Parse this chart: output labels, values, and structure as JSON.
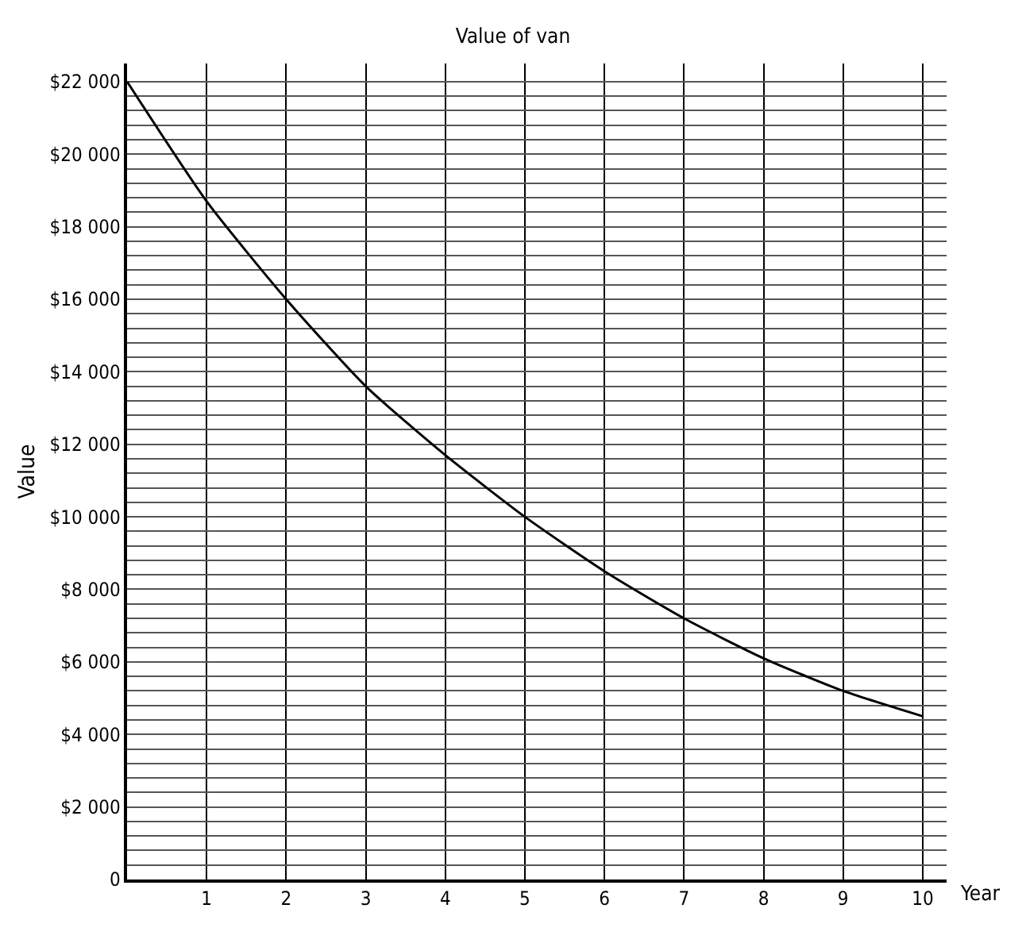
{
  "chart_data": {
    "type": "line",
    "title": "Value of van",
    "xlabel": "Year",
    "ylabel": "Value",
    "x": [
      0,
      1,
      2,
      3,
      4,
      5,
      6,
      7,
      8,
      9,
      10
    ],
    "series": [
      {
        "color": "#000000",
        "values": [
          22000,
          18700,
          16000,
          13600,
          11700,
          10000,
          8500,
          7200,
          6100,
          5200,
          4500
        ]
      }
    ],
    "xlim": [
      0,
      10.3
    ],
    "ylim": [
      0,
      22500
    ],
    "xticks": [
      1,
      2,
      3,
      4,
      5,
      6,
      7,
      8,
      9,
      10
    ],
    "yticks": [
      0,
      {
        "value": 400,
        "label": null
      },
      {
        "value": 800,
        "label": null
      },
      {
        "value": 1200,
        "label": null
      },
      {
        "value": 1600,
        "label": null
      },
      {
        "value": 2000,
        "label": "$2 000"
      },
      {
        "value": 2400,
        "label": null
      },
      {
        "value": 2800,
        "label": null
      },
      {
        "value": 3200,
        "label": null
      },
      {
        "value": 3600,
        "label": null
      },
      {
        "value": 4000,
        "label": "$4 000"
      },
      {
        "value": 4400,
        "label": null
      },
      {
        "value": 4800,
        "label": null
      },
      {
        "value": 5200,
        "label": null
      },
      {
        "value": 5600,
        "label": null
      },
      {
        "value": 6000,
        "label": "$6 000"
      },
      {
        "value": 6400,
        "label": null
      },
      {
        "value": 6800,
        "label": null
      },
      {
        "value": 7200,
        "label": null
      },
      {
        "value": 7600,
        "label": null
      },
      {
        "value": 8000,
        "label": "$8 000"
      },
      {
        "value": 8400,
        "label": null
      },
      {
        "value": 8800,
        "label": null
      },
      {
        "value": 9200,
        "label": null
      },
      {
        "value": 9600,
        "label": null
      },
      {
        "value": 10000,
        "label": "$10 000"
      },
      {
        "value": 10400,
        "label": null
      },
      {
        "value": 10800,
        "label": null
      },
      {
        "value": 11200,
        "label": null
      },
      {
        "value": 11600,
        "label": null
      },
      {
        "value": 12000,
        "label": "$12 000"
      },
      {
        "value": 12400,
        "label": null
      },
      {
        "value": 12800,
        "label": null
      },
      {
        "value": 13200,
        "label": null
      },
      {
        "value": 13600,
        "label": null
      },
      {
        "value": 14000,
        "label": "$14 000"
      },
      {
        "value": 14400,
        "label": null
      },
      {
        "value": 14800,
        "label": null
      },
      {
        "value": 15200,
        "label": null
      },
      {
        "value": 15600,
        "label": null
      },
      {
        "value": 16000,
        "label": "$16 000"
      },
      {
        "value": 16400,
        "label": null
      },
      {
        "value": 16800,
        "label": null
      },
      {
        "value": 17200,
        "label": null
      },
      {
        "value": 17600,
        "label": null
      },
      {
        "value": 18000,
        "label": "$18 000"
      },
      {
        "value": 18400,
        "label": null
      },
      {
        "value": 18800,
        "label": null
      },
      {
        "value": 19200,
        "label": null
      },
      {
        "value": 19600,
        "label": null
      },
      {
        "value": 20000,
        "label": "$20 000"
      },
      {
        "value": 20400,
        "label": null
      },
      {
        "value": 20800,
        "label": null
      },
      {
        "value": 21200,
        "label": null
      },
      {
        "value": 21600,
        "label": null
      },
      {
        "value": 22000,
        "label": "$22 000"
      }
    ],
    "grid": true,
    "marker": "none",
    "line_style": "solid"
  }
}
